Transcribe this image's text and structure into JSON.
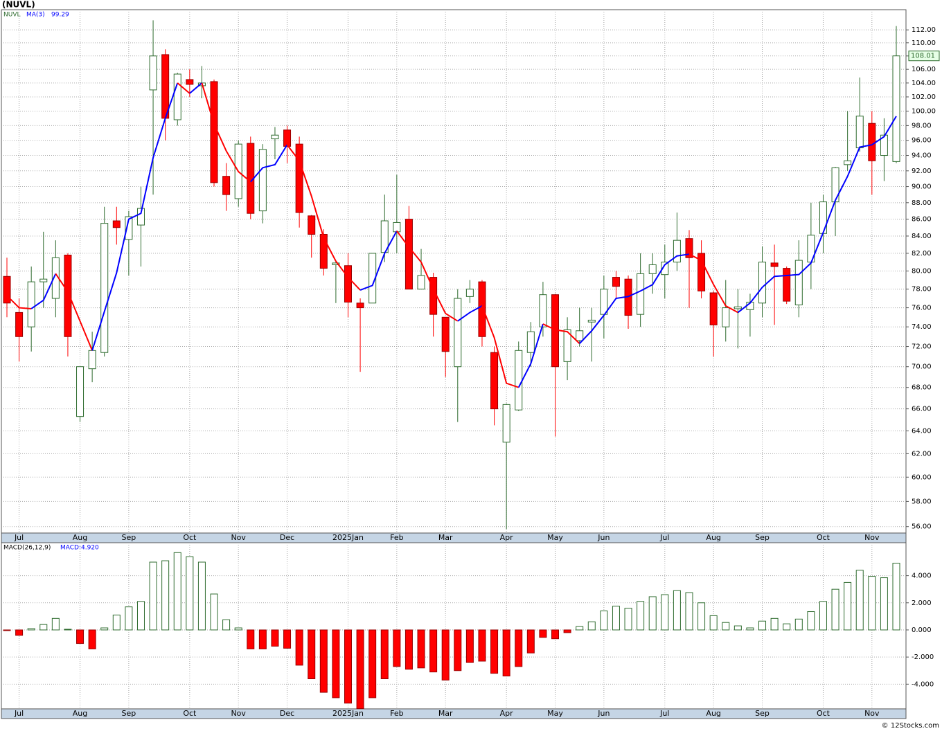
{
  "title": "(NUVL)",
  "copyright": "© 12Stocks.com",
  "chart_data": [
    {
      "type": "candlestick",
      "ticker": "NUVL",
      "log_scale": true,
      "grid": true,
      "up_color": "#2e6b2e",
      "down_color": "#ff0000",
      "categories": [
        null,
        "Jul",
        null,
        null,
        null,
        null,
        "Aug",
        null,
        null,
        null,
        "Sep",
        null,
        null,
        null,
        null,
        "Oct",
        null,
        null,
        null,
        "Nov",
        null,
        null,
        null,
        "Dec",
        null,
        null,
        null,
        null,
        "2025Jan",
        null,
        null,
        null,
        "Feb",
        null,
        null,
        null,
        "Mar",
        null,
        null,
        null,
        null,
        "Apr",
        null,
        null,
        null,
        "May",
        null,
        null,
        null,
        "Jun",
        null,
        null,
        null,
        null,
        "Jul",
        null,
        null,
        null,
        "Aug",
        null,
        null,
        null,
        "Sep",
        null,
        null,
        null,
        null,
        "Oct",
        null,
        null,
        null,
        "Nov",
        null,
        null
      ],
      "open": [
        79.4,
        75.5,
        74,
        78.8,
        77,
        81.8,
        65.3,
        69.8,
        71.4,
        85.8,
        83.6,
        85.3,
        103,
        108.2,
        98.8,
        104.5,
        103.6,
        104.2,
        91.3,
        88.5,
        95.6,
        87,
        96.2,
        97.4,
        95.5,
        86.4,
        84.2,
        80.7,
        80.6,
        76.5,
        76.5,
        82.1,
        84.5,
        86,
        78,
        79.3,
        75,
        70,
        77.2,
        78.8,
        71.4,
        63,
        65.9,
        71.4,
        74,
        77.4,
        70.5,
        72.6,
        74.5,
        75.3,
        79.3,
        79.1,
        75.3,
        79.7,
        79.6,
        81,
        83.7,
        82,
        77.6,
        74,
        75.9,
        75.8,
        76.5,
        80.9,
        80.3,
        76.3,
        81,
        84.3,
        88.1,
        92.8,
        95,
        98.3,
        94,
        93.2
      ],
      "high": [
        81.5,
        77,
        80.5,
        84.5,
        83.5,
        82,
        70,
        73.5,
        87.5,
        87.5,
        87,
        90,
        113.5,
        109,
        105.5,
        106,
        106.5,
        104.5,
        93,
        96,
        96.5,
        95.5,
        97.8,
        98,
        96.5,
        86.5,
        84.8,
        81,
        82,
        77,
        82,
        89,
        91.5,
        87.6,
        82.5,
        79.8,
        75,
        78,
        79,
        79,
        72,
        66.5,
        72.5,
        74.5,
        78.8,
        77.5,
        75,
        76,
        76,
        79.5,
        80,
        79.5,
        82,
        82,
        83,
        86.8,
        84.7,
        83.5,
        77.8,
        79,
        78,
        77.5,
        82.8,
        83,
        80.5,
        83.5,
        88,
        89,
        92.5,
        100,
        104.8,
        100,
        99,
        112.6
      ],
      "low": [
        75,
        70.5,
        71.5,
        76,
        75,
        71,
        64.8,
        68.5,
        71,
        83,
        79.5,
        80.5,
        89,
        96,
        98,
        102,
        101.8,
        90,
        87,
        87.5,
        86,
        85.5,
        93.5,
        93,
        85,
        81.5,
        79.5,
        76.5,
        75,
        69.5,
        76.5,
        81,
        82,
        78,
        78,
        73,
        69,
        64.8,
        76.5,
        72,
        64.5,
        55.8,
        65.8,
        70,
        73,
        63.5,
        68.7,
        72,
        70.5,
        72.8,
        77,
        73.8,
        74,
        77.5,
        77,
        80,
        76,
        77,
        71,
        72.5,
        71.8,
        73,
        75,
        74.2,
        76.4,
        75,
        78,
        82,
        84,
        92,
        94.5,
        89,
        90.7,
        93
      ],
      "close": [
        76.5,
        73,
        78.8,
        79.1,
        81.5,
        73,
        70,
        71.6,
        85.5,
        85,
        86.3,
        87.3,
        108,
        99,
        105.3,
        103.8,
        104,
        90.5,
        89,
        95.5,
        86.7,
        94.8,
        96.7,
        95.2,
        86.8,
        84.2,
        80.3,
        80.9,
        76.6,
        76,
        82,
        85.8,
        85.6,
        78,
        79.5,
        75.3,
        71.5,
        77,
        78,
        73,
        66,
        66.4,
        71.6,
        73.5,
        77.4,
        70,
        73.7,
        73.6,
        74.7,
        78,
        78.3,
        75.2,
        79.7,
        80.7,
        81,
        83.5,
        81.5,
        77.8,
        74.2,
        76,
        76.1,
        76.6,
        81,
        80.5,
        76.7,
        81.2,
        84.1,
        88.1,
        92.4,
        93.3,
        99.3,
        93.3,
        96.7,
        108.01
      ],
      "series": [
        {
          "name": "MA(3)",
          "color": "#0000ff",
          "down_color": "#ff0000",
          "values": [
            77.3,
            76,
            75.9,
            76.8,
            79.7,
            77.7,
            74.6,
            71.6,
            75.6,
            79.8,
            86,
            86.7,
            93.7,
            99,
            104,
            102.5,
            104,
            98.2,
            94.6,
            91.9,
            90.6,
            92.4,
            92.8,
            95.4,
            93.3,
            88.8,
            83.8,
            81.1,
            79.3,
            77.9,
            78.4,
            82,
            84.6,
            82.7,
            81,
            78,
            75.4,
            74.6,
            75.5,
            76.2,
            72.9,
            68.4,
            68,
            70.3,
            74.3,
            73.7,
            73.5,
            72.3,
            73.6,
            75.2,
            77,
            77.2,
            77.8,
            78.5,
            80.7,
            81.7,
            81.9,
            81.2,
            78.5,
            76.2,
            75.5,
            76.5,
            78.2,
            79.4,
            79.5,
            79.6,
            80.9,
            84.4,
            88.3,
            91.3,
            95.1,
            95.4,
            96.5,
            99.29
          ]
        }
      ],
      "ylim": [
        55.5,
        115.2
      ],
      "yticks": [
        {
          "value": 56,
          "label": "56.00"
        },
        {
          "value": 58,
          "label": "58.00"
        },
        {
          "value": 60,
          "label": "60.00"
        },
        {
          "value": 62,
          "label": "62.00"
        },
        {
          "value": 64,
          "label": "64.00"
        },
        {
          "value": 66,
          "label": "66.00"
        },
        {
          "value": 68,
          "label": "68.00"
        },
        {
          "value": 70,
          "label": "70.00"
        },
        {
          "value": 72,
          "label": "72.00"
        },
        {
          "value": 74,
          "label": "74.00"
        },
        {
          "value": 76,
          "label": "76.00"
        },
        {
          "value": 78,
          "label": "78.00"
        },
        {
          "value": 80,
          "label": "80.00"
        },
        {
          "value": 82,
          "label": "82.00"
        },
        {
          "value": 84,
          "label": "84.00"
        },
        {
          "value": 86,
          "label": "86.00"
        },
        {
          "value": 88,
          "label": "88.00"
        },
        {
          "value": 90,
          "label": "90.00"
        },
        {
          "value": 92,
          "label": "92.00"
        },
        {
          "value": 94,
          "label": "94.00"
        },
        {
          "value": 96,
          "label": "96.00"
        },
        {
          "value": 98,
          "label": "98.00"
        },
        {
          "value": 100,
          "label": "100.00"
        },
        {
          "value": 102,
          "label": "102.00"
        },
        {
          "value": 104,
          "label": "104.00"
        },
        {
          "value": 106,
          "label": "106.00"
        },
        {
          "value": 108,
          "label": "108.00"
        },
        {
          "value": 110,
          "label": "110.00"
        },
        {
          "value": 112,
          "label": "112.00"
        }
      ]
    },
    {
      "type": "bar",
      "indicator": "MACD(26,12,9)",
      "legend": "MACD:4.920",
      "grid": true,
      "up_color": "#2e6b2e",
      "down_color": "#ff0000",
      "values": [
        -0.05,
        -0.4,
        0.1,
        0.4,
        0.85,
        0.05,
        -1,
        -1.4,
        0.15,
        1.1,
        1.7,
        2.1,
        5,
        5.1,
        5.7,
        5.4,
        5,
        2.65,
        0.75,
        0.15,
        -1.4,
        -1.4,
        -1.2,
        -1.35,
        -2.6,
        -3.6,
        -4.6,
        -5,
        -5.4,
        -5.8,
        -5,
        -3.6,
        -2.7,
        -2.9,
        -2.8,
        -3.1,
        -3.7,
        -3,
        -2.4,
        -2.3,
        -3.2,
        -3.4,
        -2.7,
        -1.7,
        -0.55,
        -0.65,
        -0.2,
        0.25,
        0.6,
        1.4,
        1.75,
        1.6,
        2.1,
        2.45,
        2.6,
        2.9,
        2.75,
        2,
        1.05,
        0.55,
        0.3,
        0.15,
        0.65,
        0.85,
        0.45,
        0.8,
        1.35,
        2.1,
        3,
        3.5,
        4.4,
        3.95,
        3.85,
        4.92
      ],
      "ylim": [
        -5.82,
        6.43
      ],
      "yticks": [
        {
          "value": -4,
          "label": "-4.000"
        },
        {
          "value": -2,
          "label": "-2.000"
        },
        {
          "value": 0,
          "label": "0.000"
        },
        {
          "value": 2,
          "label": "2.000"
        },
        {
          "value": 4,
          "label": "4.000"
        }
      ]
    }
  ]
}
